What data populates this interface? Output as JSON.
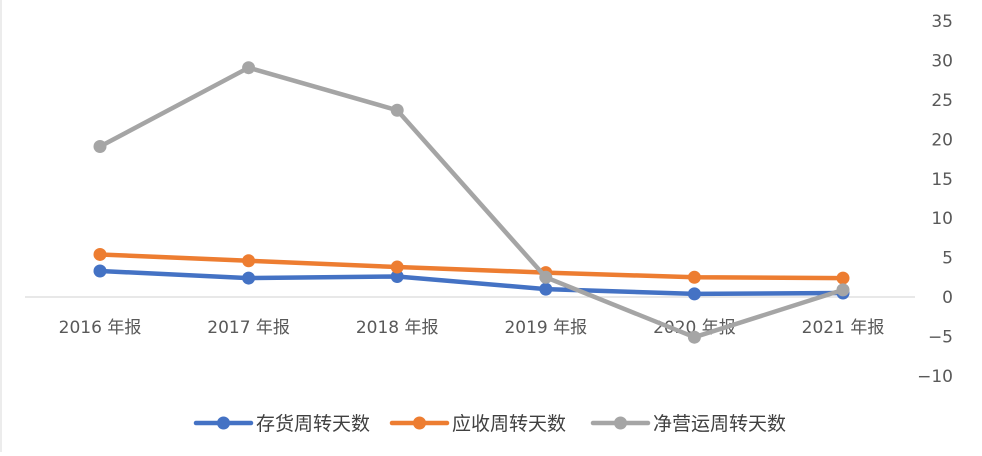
{
  "chart_data": {
    "type": "line",
    "categories": [
      "2016 年报",
      "2017 年报",
      "2018 年报",
      "2019 年报",
      "2020 年报",
      "2021 年报"
    ],
    "series": [
      {
        "name": "存货周转天数",
        "color": "#4472C4",
        "values": [
          3.3,
          2.4,
          2.6,
          1.0,
          0.4,
          0.5
        ]
      },
      {
        "name": "应收周转天数",
        "color": "#ED7D31",
        "values": [
          5.4,
          4.6,
          3.8,
          3.1,
          2.5,
          2.4
        ]
      },
      {
        "name": "净营运周转天数",
        "color": "#A5A5A5",
        "values": [
          19.1,
          29.1,
          23.7,
          2.5,
          -5.1,
          0.9
        ]
      }
    ],
    "yticks": [
      "35",
      "30",
      "25",
      "20",
      "15",
      "10",
      "5",
      "0",
      "−5",
      "−10"
    ],
    "ylim": [
      -10,
      35
    ],
    "y_axis_position": "right",
    "grid": false,
    "legend_position": "bottom",
    "title": "",
    "xlabel": "",
    "ylabel": ""
  }
}
